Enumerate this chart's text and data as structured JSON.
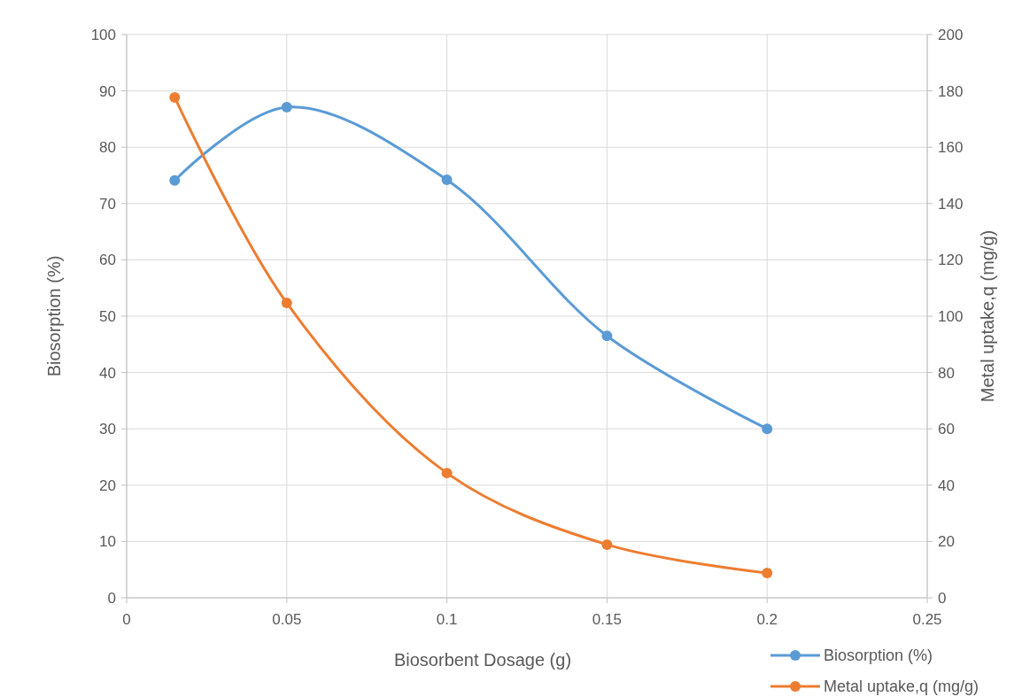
{
  "chart_data": {
    "type": "line",
    "xlabel": "Biosorbent Dosage (g)",
    "ylabel": "Biosorption (%)",
    "y2label": "Metal uptake,q (mg/g)",
    "x": [
      0.015,
      0.05,
      0.1,
      0.15,
      0.2
    ],
    "series": [
      {
        "name": "Biosorption (%)",
        "color": "#5b9bd5",
        "values": [
          74.1,
          87.1,
          74.2,
          46.5,
          30.0
        ]
      },
      {
        "name": "Metal uptake,q (mg/g)",
        "color": "#ed7d31",
        "axis": "y2",
        "values": [
          177.7,
          104.7,
          44.3,
          18.9,
          8.8
        ]
      }
    ],
    "xlim": [
      0,
      0.25
    ],
    "xticks": [
      0,
      0.05,
      0.1,
      0.15,
      0.2,
      0.25
    ],
    "ylim": [
      0,
      100
    ],
    "yticks": [
      0,
      10,
      20,
      30,
      40,
      50,
      60,
      70,
      80,
      90,
      100
    ],
    "y2lim": [
      0,
      200
    ],
    "y2ticks": [
      0,
      20,
      40,
      60,
      80,
      100,
      120,
      140,
      160,
      180,
      200
    ],
    "grid": true,
    "legend": "bottom right",
    "marker": "circle",
    "line_style": "solid"
  }
}
